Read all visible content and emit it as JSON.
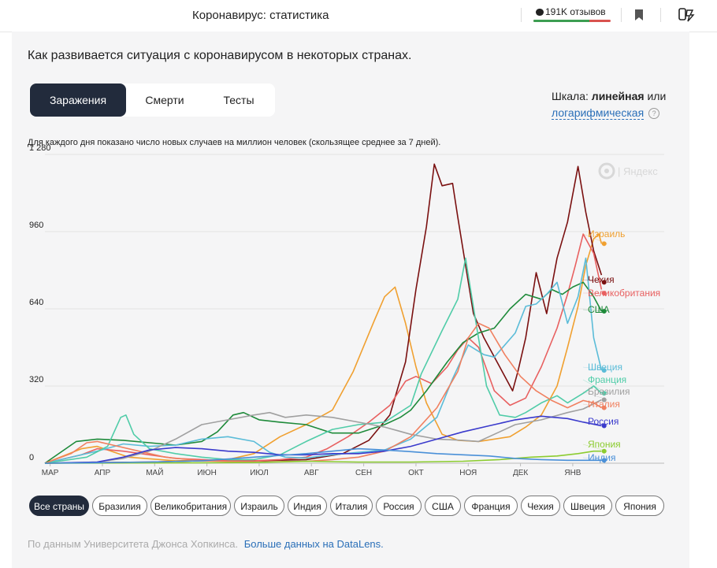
{
  "header": {
    "title": "Коронавирус: статистика",
    "reviews_label": "191K отзывов",
    "reviews_positive": 0.72
  },
  "main": {
    "subtitle": "Как развивается ситуация с коронавирусом в некоторых странах.",
    "tabs": [
      {
        "label": "Заражения",
        "active": true
      },
      {
        "label": "Смерти",
        "active": false
      },
      {
        "label": "Тесты",
        "active": false
      }
    ],
    "scale": {
      "prefix": "Шкала:",
      "current": "линейная",
      "or": "или",
      "alt": "логарифмическая",
      "help": "?"
    },
    "note": "Для каждого дня показано число новых случаев на миллион человек (скользящее среднее за 7 дней).",
    "watermark": "Яндекс",
    "filters": [
      "Все страны",
      "Бразилия",
      "Великобритания",
      "Израиль",
      "Индия",
      "Италия",
      "Россия",
      "США",
      "Франция",
      "Чехия",
      "Швеция",
      "Япония"
    ],
    "active_filter": 0,
    "source_text": "По данным Университета Джонса Хопкинса.",
    "source_link": "Больше данных на DataLens."
  },
  "chart_data": {
    "type": "line",
    "y_ticks": [
      "1 280",
      "960",
      "640",
      "320",
      "0"
    ],
    "ylim": [
      0,
      1280
    ],
    "months": [
      "МАР",
      "АПР",
      "МАЙ",
      "ИЮН",
      "ИЮЛ",
      "АВГ",
      "СЕН",
      "ОКТ",
      "НОЯ",
      "ДЕК",
      "ЯНВ"
    ],
    "xlim": [
      0,
      11.85
    ],
    "series": [
      {
        "name": "Израиль",
        "color": "#f0a030",
        "end": 910,
        "points": [
          [
            0,
            0
          ],
          [
            0.7,
            60
          ],
          [
            1.0,
            70
          ],
          [
            1.6,
            25
          ],
          [
            2.5,
            10
          ],
          [
            3.5,
            15
          ],
          [
            4.0,
            40
          ],
          [
            4.5,
            110
          ],
          [
            5.0,
            160
          ],
          [
            5.5,
            220
          ],
          [
            5.9,
            380
          ],
          [
            6.3,
            590
          ],
          [
            6.5,
            690
          ],
          [
            6.7,
            730
          ],
          [
            6.9,
            580
          ],
          [
            7.1,
            400
          ],
          [
            7.3,
            250
          ],
          [
            7.6,
            120
          ],
          [
            7.9,
            95
          ],
          [
            8.3,
            90
          ],
          [
            8.9,
            110
          ],
          [
            9.2,
            150
          ],
          [
            9.5,
            200
          ],
          [
            9.8,
            320
          ],
          [
            10.0,
            480
          ],
          [
            10.2,
            650
          ],
          [
            10.35,
            820
          ],
          [
            10.5,
            930
          ],
          [
            10.6,
            950
          ],
          [
            10.65,
            910
          ]
        ]
      },
      {
        "name": "Чехия",
        "color": "#7a1010",
        "end": 750,
        "points": [
          [
            0,
            0
          ],
          [
            2,
            5
          ],
          [
            3,
            10
          ],
          [
            4,
            10
          ],
          [
            5,
            15
          ],
          [
            5.7,
            40
          ],
          [
            6.2,
            95
          ],
          [
            6.6,
            200
          ],
          [
            6.9,
            420
          ],
          [
            7.1,
            720
          ],
          [
            7.3,
            980
          ],
          [
            7.45,
            1240
          ],
          [
            7.6,
            1150
          ],
          [
            7.8,
            1160
          ],
          [
            7.9,
            1020
          ],
          [
            8.05,
            820
          ],
          [
            8.2,
            620
          ],
          [
            8.4,
            520
          ],
          [
            8.7,
            400
          ],
          [
            8.95,
            300
          ],
          [
            9.05,
            380
          ],
          [
            9.2,
            520
          ],
          [
            9.4,
            790
          ],
          [
            9.6,
            620
          ],
          [
            9.8,
            850
          ],
          [
            10.0,
            1000
          ],
          [
            10.2,
            1230
          ],
          [
            10.35,
            1040
          ],
          [
            10.5,
            880
          ],
          [
            10.65,
            780
          ]
        ]
      },
      {
        "name": "Великобритания",
        "color": "#e86060",
        "end": 705,
        "points": [
          [
            0,
            0
          ],
          [
            0.7,
            35
          ],
          [
            1.0,
            60
          ],
          [
            1.5,
            50
          ],
          [
            2.0,
            35
          ],
          [
            2.5,
            20
          ],
          [
            3.0,
            15
          ],
          [
            3.5,
            10
          ],
          [
            4.0,
            10
          ],
          [
            4.5,
            15
          ],
          [
            5.0,
            25
          ],
          [
            5.4,
            60
          ],
          [
            5.8,
            110
          ],
          [
            6.2,
            170
          ],
          [
            6.6,
            240
          ],
          [
            6.9,
            340
          ],
          [
            7.1,
            360
          ],
          [
            7.4,
            330
          ],
          [
            7.7,
            400
          ],
          [
            7.9,
            470
          ],
          [
            8.1,
            520
          ],
          [
            8.3,
            480
          ],
          [
            8.6,
            300
          ],
          [
            8.9,
            240
          ],
          [
            9.2,
            270
          ],
          [
            9.5,
            400
          ],
          [
            9.8,
            560
          ],
          [
            10.0,
            700
          ],
          [
            10.15,
            820
          ],
          [
            10.3,
            950
          ],
          [
            10.5,
            870
          ],
          [
            10.65,
            720
          ]
        ]
      },
      {
        "name": "США",
        "color": "#1e8a3a",
        "end": 630,
        "points": [
          [
            0,
            0
          ],
          [
            0.6,
            90
          ],
          [
            1.0,
            100
          ],
          [
            1.5,
            95
          ],
          [
            2.0,
            85
          ],
          [
            2.5,
            75
          ],
          [
            3.0,
            90
          ],
          [
            3.3,
            130
          ],
          [
            3.6,
            200
          ],
          [
            3.8,
            210
          ],
          [
            4.1,
            180
          ],
          [
            4.5,
            170
          ],
          [
            5.0,
            160
          ],
          [
            5.5,
            125
          ],
          [
            6.0,
            125
          ],
          [
            6.5,
            160
          ],
          [
            6.8,
            190
          ],
          [
            7.0,
            220
          ],
          [
            7.3,
            300
          ],
          [
            7.7,
            420
          ],
          [
            8.0,
            500
          ],
          [
            8.3,
            540
          ],
          [
            8.6,
            560
          ],
          [
            8.9,
            640
          ],
          [
            9.2,
            700
          ],
          [
            9.5,
            680
          ],
          [
            9.7,
            720
          ],
          [
            9.9,
            700
          ],
          [
            10.1,
            730
          ],
          [
            10.3,
            750
          ],
          [
            10.5,
            690
          ],
          [
            10.65,
            630
          ]
        ]
      },
      {
        "name": "Швеция",
        "color": "#5bbcd8",
        "end": 385,
        "points": [
          [
            0,
            0
          ],
          [
            1.0,
            50
          ],
          [
            1.5,
            80
          ],
          [
            2.0,
            70
          ],
          [
            2.5,
            75
          ],
          [
            3.0,
            100
          ],
          [
            3.5,
            110
          ],
          [
            4.0,
            90
          ],
          [
            4.3,
            45
          ],
          [
            4.6,
            25
          ],
          [
            5.0,
            22
          ],
          [
            5.5,
            35
          ],
          [
            6.0,
            45
          ],
          [
            6.5,
            55
          ],
          [
            7.0,
            100
          ],
          [
            7.5,
            190
          ],
          [
            7.8,
            350
          ],
          [
            8.1,
            490
          ],
          [
            8.4,
            450
          ],
          [
            8.6,
            440
          ],
          [
            9.0,
            540
          ],
          [
            9.2,
            650
          ],
          [
            9.4,
            660
          ],
          [
            9.6,
            700
          ],
          [
            9.8,
            750
          ],
          [
            10.0,
            580
          ],
          [
            10.2,
            690
          ],
          [
            10.35,
            850
          ],
          [
            10.5,
            520
          ],
          [
            10.65,
            385
          ]
        ]
      },
      {
        "name": "Франция",
        "color": "#50cca8",
        "end": 290,
        "points": [
          [
            0,
            0
          ],
          [
            0.8,
            25
          ],
          [
            1.2,
            70
          ],
          [
            1.45,
            190
          ],
          [
            1.55,
            200
          ],
          [
            1.7,
            120
          ],
          [
            2.0,
            60
          ],
          [
            2.5,
            40
          ],
          [
            3.0,
            25
          ],
          [
            3.5,
            15
          ],
          [
            4.0,
            15
          ],
          [
            4.5,
            35
          ],
          [
            5.0,
            90
          ],
          [
            5.5,
            140
          ],
          [
            6.0,
            160
          ],
          [
            6.5,
            170
          ],
          [
            7.0,
            240
          ],
          [
            7.2,
            370
          ],
          [
            7.6,
            550
          ],
          [
            7.9,
            680
          ],
          [
            8.05,
            850
          ],
          [
            8.1,
            780
          ],
          [
            8.25,
            580
          ],
          [
            8.45,
            320
          ],
          [
            8.7,
            200
          ],
          [
            9.0,
            190
          ],
          [
            9.2,
            210
          ],
          [
            9.5,
            250
          ],
          [
            9.8,
            280
          ],
          [
            10.0,
            250
          ],
          [
            10.3,
            290
          ],
          [
            10.5,
            320
          ],
          [
            10.65,
            290
          ]
        ]
      },
      {
        "name": "Бразилия",
        "color": "#a0a0a0",
        "end": 263,
        "points": [
          [
            0,
            0
          ],
          [
            1.0,
            5
          ],
          [
            1.5,
            20
          ],
          [
            2.0,
            50
          ],
          [
            2.5,
            100
          ],
          [
            3.0,
            160
          ],
          [
            3.5,
            180
          ],
          [
            4.0,
            200
          ],
          [
            4.3,
            210
          ],
          [
            4.6,
            190
          ],
          [
            5.0,
            200
          ],
          [
            5.5,
            190
          ],
          [
            6.0,
            170
          ],
          [
            6.5,
            150
          ],
          [
            7.0,
            120
          ],
          [
            7.5,
            100
          ],
          [
            8.0,
            95
          ],
          [
            8.3,
            90
          ],
          [
            8.7,
            130
          ],
          [
            9.0,
            160
          ],
          [
            9.5,
            180
          ],
          [
            10.0,
            210
          ],
          [
            10.3,
            225
          ],
          [
            10.65,
            263
          ]
        ]
      },
      {
        "name": "Италия",
        "color": "#f08060",
        "end": 230,
        "points": [
          [
            0,
            0
          ],
          [
            0.5,
            40
          ],
          [
            0.8,
            85
          ],
          [
            1.0,
            90
          ],
          [
            1.3,
            75
          ],
          [
            1.8,
            50
          ],
          [
            2.3,
            25
          ],
          [
            3.0,
            10
          ],
          [
            4.0,
            5
          ],
          [
            5.0,
            8
          ],
          [
            5.5,
            15
          ],
          [
            6.0,
            25
          ],
          [
            6.5,
            50
          ],
          [
            7.0,
            110
          ],
          [
            7.5,
            230
          ],
          [
            7.9,
            380
          ],
          [
            8.1,
            520
          ],
          [
            8.3,
            580
          ],
          [
            8.5,
            560
          ],
          [
            8.8,
            450
          ],
          [
            9.1,
            360
          ],
          [
            9.4,
            300
          ],
          [
            9.7,
            260
          ],
          [
            10.0,
            230
          ],
          [
            10.3,
            260
          ],
          [
            10.5,
            250
          ],
          [
            10.65,
            230
          ]
        ]
      },
      {
        "name": "Россия",
        "color": "#3a3acc",
        "end": 155,
        "points": [
          [
            0,
            0
          ],
          [
            1.0,
            5
          ],
          [
            1.5,
            25
          ],
          [
            2.0,
            55
          ],
          [
            2.5,
            65
          ],
          [
            3.0,
            60
          ],
          [
            3.5,
            50
          ],
          [
            4.0,
            45
          ],
          [
            4.5,
            35
          ],
          [
            5.0,
            35
          ],
          [
            5.5,
            40
          ],
          [
            6.0,
            40
          ],
          [
            6.5,
            50
          ],
          [
            7.0,
            70
          ],
          [
            7.5,
            100
          ],
          [
            8.0,
            130
          ],
          [
            8.5,
            155
          ],
          [
            9.0,
            180
          ],
          [
            9.5,
            195
          ],
          [
            10.0,
            185
          ],
          [
            10.3,
            170
          ],
          [
            10.65,
            155
          ]
        ]
      },
      {
        "name": "Япония",
        "color": "#8ccc30",
        "end": 50,
        "points": [
          [
            0,
            0
          ],
          [
            3.0,
            2
          ],
          [
            4.0,
            3
          ],
          [
            5.0,
            8
          ],
          [
            6.0,
            5
          ],
          [
            7.0,
            5
          ],
          [
            8.0,
            8
          ],
          [
            8.7,
            15
          ],
          [
            9.3,
            25
          ],
          [
            9.8,
            30
          ],
          [
            10.2,
            40
          ],
          [
            10.5,
            50
          ],
          [
            10.65,
            50
          ]
        ]
      },
      {
        "name": "Индия",
        "color": "#4a90d8",
        "end": 12,
        "points": [
          [
            0,
            0
          ],
          [
            1.0,
            2
          ],
          [
            2.0,
            5
          ],
          [
            3.0,
            10
          ],
          [
            4.0,
            25
          ],
          [
            5.0,
            40
          ],
          [
            5.5,
            50
          ],
          [
            6.0,
            60
          ],
          [
            6.5,
            55
          ],
          [
            7.0,
            48
          ],
          [
            7.5,
            40
          ],
          [
            8.0,
            35
          ],
          [
            8.5,
            30
          ],
          [
            9.0,
            20
          ],
          [
            9.5,
            15
          ],
          [
            10.0,
            12
          ],
          [
            10.65,
            12
          ]
        ]
      }
    ]
  }
}
